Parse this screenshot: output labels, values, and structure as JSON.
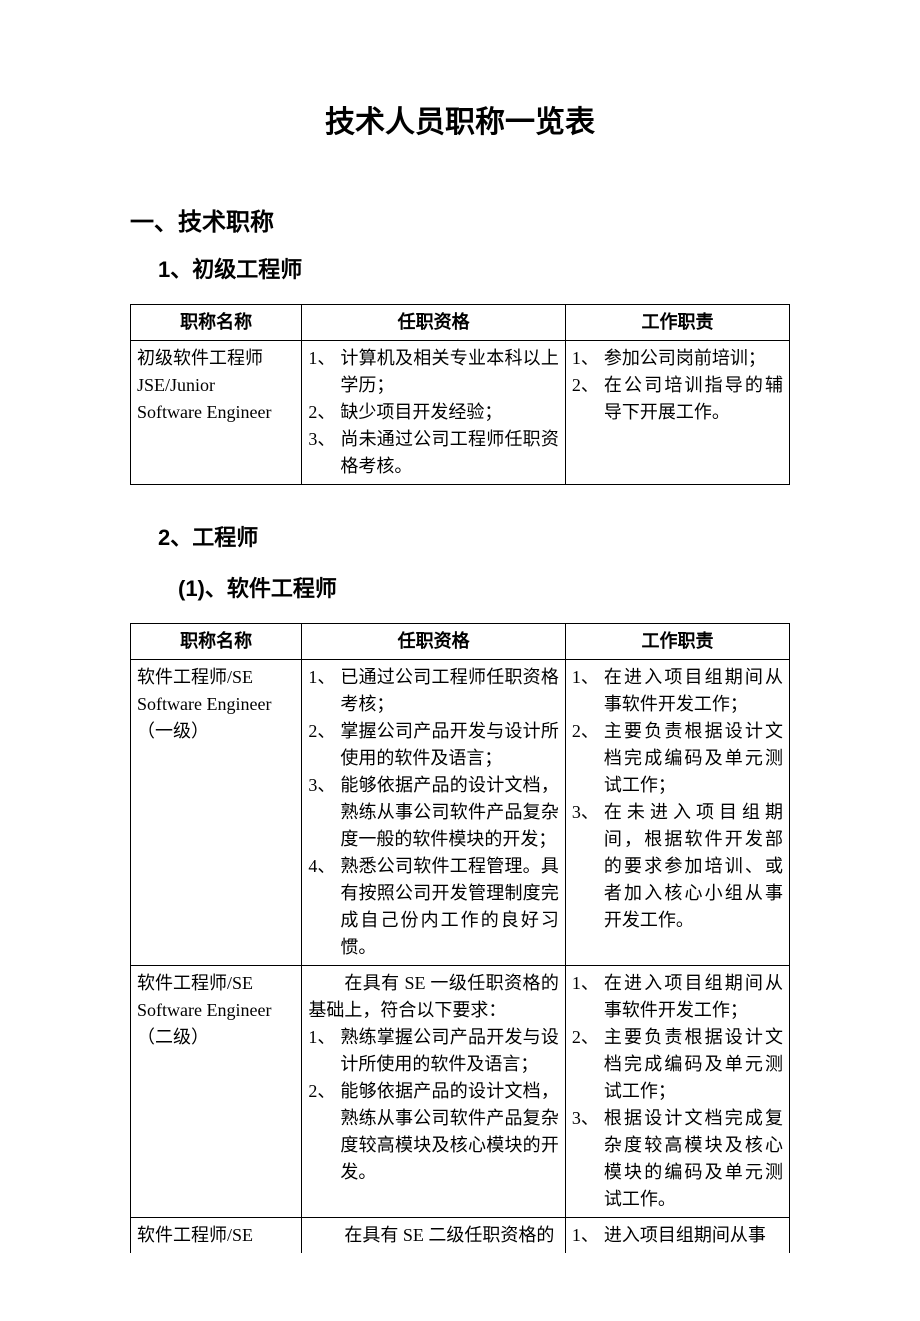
{
  "page": {
    "background_color": "#ffffff",
    "text_color": "#000000",
    "border_color": "#000000"
  },
  "title": "技术人员职称一览表",
  "section1": {
    "heading": "一、技术职称",
    "sub1": {
      "heading": "1、初级工程师",
      "table": {
        "headers": {
          "c1": "职称名称",
          "c2": "任职资格",
          "c3": "工作职责"
        },
        "rows": [
          {
            "name": {
              "line1": "初级软件工程师",
              "line2": "JSE/Junior",
              "line3": "Software Engineer"
            },
            "qualifications": [
              {
                "num": "1、",
                "text": "计算机及相关专业本科以上学历；"
              },
              {
                "num": "2、",
                "text": "缺少项目开发经验；"
              },
              {
                "num": "3、",
                "text": "尚未通过公司工程师任职资格考核。"
              }
            ],
            "duties": [
              {
                "num": "1、",
                "text": "参加公司岗前培训；"
              },
              {
                "num": "2、",
                "text": "在公司培训指导的辅导下开展工作。"
              }
            ]
          }
        ]
      }
    },
    "sub2": {
      "heading": "2、工程师",
      "subsub1": {
        "heading": "(1)、软件工程师",
        "table": {
          "headers": {
            "c1": "职称名称",
            "c2": "任职资格",
            "c3": "工作职责"
          },
          "rows": [
            {
              "name": {
                "line1": "软件工程师/SE",
                "line2": "Software Engineer",
                "line3": "（一级）"
              },
              "qualifications": [
                {
                  "num": "1、",
                  "text": "已通过公司工程师任职资格考核；"
                },
                {
                  "num": "2、",
                  "text": "掌握公司产品开发与设计所使用的软件及语言；"
                },
                {
                  "num": "3、",
                  "text": "能够依据产品的设计文档，熟练从事公司软件产品复杂度一般的软件模块的开发；"
                },
                {
                  "num": "4、",
                  "text": "熟悉公司软件工程管理。具有按照公司开发管理制度完成自己份内工作的良好习惯。"
                }
              ],
              "duties": [
                {
                  "num": "1、",
                  "text": "在进入项目组期间从事软件开发工作；"
                },
                {
                  "num": "2、",
                  "text": "主要负责根据设计文档完成编码及单元测试工作；"
                },
                {
                  "num": "3、",
                  "text": "在未进入项目组期间，根据软件开发部的要求参加培训、或者加入核心小组从事开发工作。"
                }
              ]
            },
            {
              "name": {
                "line1": "软件工程师/SE",
                "line2": "Software Engineer",
                "line3": "（二级）"
              },
              "qual_intro": "在具有 SE 一级任职资格的基础上，符合以下要求：",
              "qualifications": [
                {
                  "num": "1、",
                  "text": "熟练掌握公司产品开发与设计所使用的软件及语言；"
                },
                {
                  "num": "2、",
                  "text": "能够依据产品的设计文档，熟练从事公司软件产品复杂度较高模块及核心模块的开发。"
                }
              ],
              "duties": [
                {
                  "num": "1、",
                  "text": "在进入项目组期间从事软件开发工作；"
                },
                {
                  "num": "2、",
                  "text": "主要负责根据设计文档完成编码及单元测试工作；"
                },
                {
                  "num": "3、",
                  "text": "根据设计文档完成复杂度较高模块及核心模块的编码及单元测试工作。"
                }
              ]
            },
            {
              "name": {
                "line1": "软件工程师/SE",
                "line2": "",
                "line3": ""
              },
              "qual_intro": "在具有 SE 二级任职资格的",
              "qualifications": [],
              "duties": [
                {
                  "num": "1、",
                  "text": "进入项目组期间从事"
                }
              ]
            }
          ]
        }
      }
    }
  }
}
